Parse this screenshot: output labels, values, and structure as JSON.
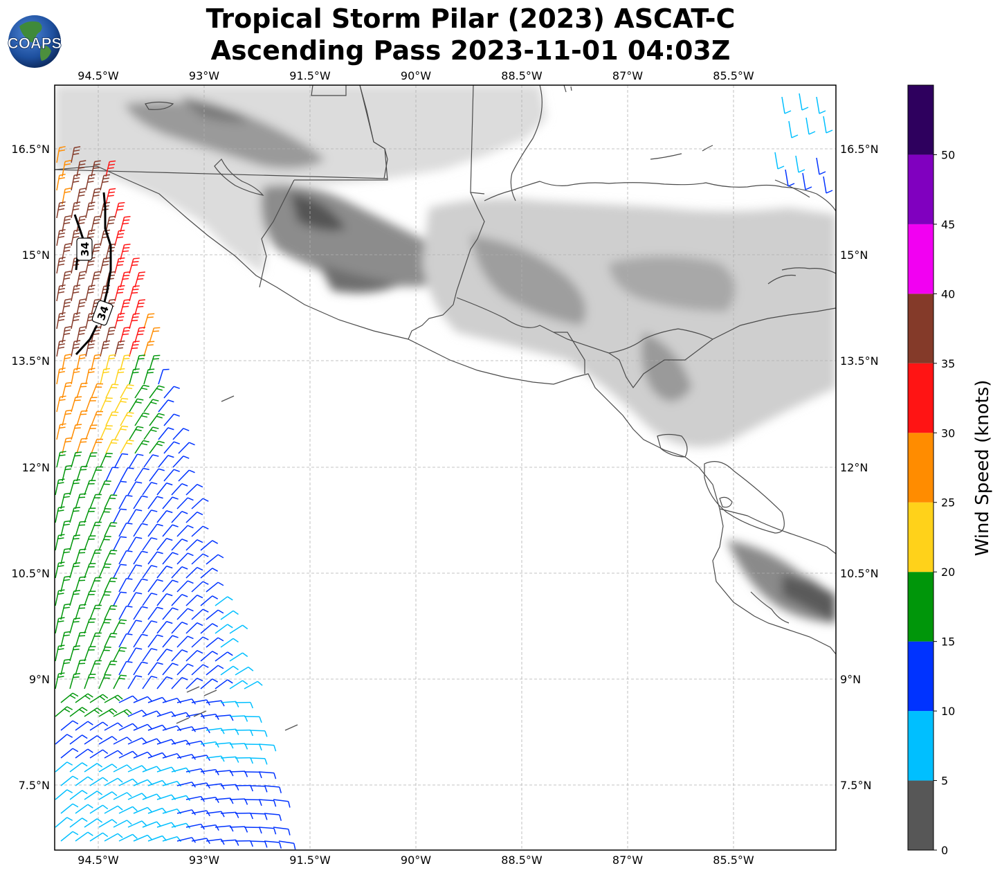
{
  "header": {
    "title_line1": "Tropical Storm Pilar (2023) ASCAT-C",
    "title_line2": "Ascending Pass 2023-11-01 04:03Z",
    "logo_text": "COAPS"
  },
  "map": {
    "lon_ticks": [
      "94.5°W",
      "93°W",
      "91.5°W",
      "90°W",
      "88.5°W",
      "87°W",
      "85.5°W"
    ],
    "lat_ticks": [
      "16.5°N",
      "15°N",
      "13.5°N",
      "12°N",
      "10.5°N",
      "9°N",
      "7.5°N"
    ],
    "contour_labels": [
      "34",
      "34"
    ],
    "colors": {
      "land_shade": "#9a9a9a",
      "coastline": "#4a4a4a",
      "gridline": "#b0b0b0",
      "contour": "#000000"
    }
  },
  "colorbar": {
    "title": "Wind Speed (knots)",
    "tick_labels": [
      "0",
      "5",
      "10",
      "15",
      "20",
      "25",
      "30",
      "35",
      "40",
      "45",
      "50"
    ],
    "bins": [
      {
        "from": 0,
        "to": 5,
        "color": "#575757"
      },
      {
        "from": 5,
        "to": 10,
        "color": "#00bfff"
      },
      {
        "from": 10,
        "to": 15,
        "color": "#0033ff"
      },
      {
        "from": 15,
        "to": 20,
        "color": "#00960a"
      },
      {
        "from": 20,
        "to": 25,
        "color": "#ffd21a"
      },
      {
        "from": 25,
        "to": 30,
        "color": "#ff8c00"
      },
      {
        "from": 30,
        "to": 35,
        "color": "#ff1414"
      },
      {
        "from": 35,
        "to": 40,
        "color": "#843a29"
      },
      {
        "from": 40,
        "to": 45,
        "color": "#f200f2"
      },
      {
        "from": 45,
        "to": 50,
        "color": "#8000bf"
      },
      {
        "from": 50,
        "to": 55,
        "color": "#2e005e"
      }
    ]
  }
}
